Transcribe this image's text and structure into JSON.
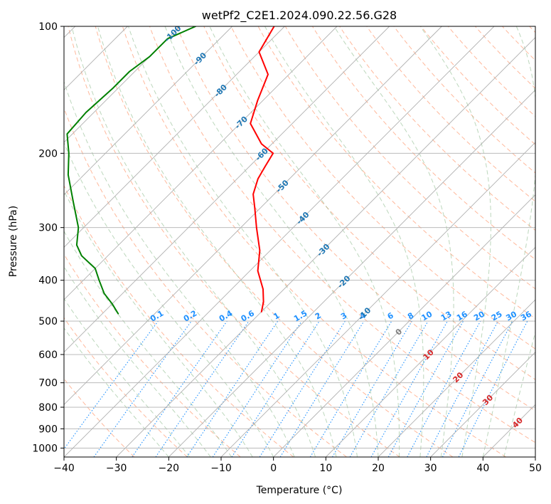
{
  "chart_data": {
    "type": "line",
    "title": "wetPf2_C2E1.2024.090.22.56.G28",
    "xlabel": "Temperature (°C)",
    "ylabel": "Pressure (hPa)",
    "xlim": [
      -40,
      50
    ],
    "ylim": [
      1050,
      100
    ],
    "y_scale": "log",
    "x_ticks": [
      -40,
      -30,
      -20,
      -10,
      0,
      10,
      20,
      30,
      40,
      50
    ],
    "y_ticks": [
      100,
      200,
      300,
      400,
      500,
      600,
      700,
      800,
      900,
      1000
    ],
    "grid": true,
    "colors": {
      "temperature": "#ff0000",
      "dewpoint": "#008000",
      "isotherms": "#b0b0b0",
      "dry_adiabats": "#ffa07a",
      "moist_adiabats": "#8fbc8f",
      "mixing_ratio": "#1e90ff",
      "isotherm_labels": "#1f77b4",
      "low_isotherm_labels": "#d62728",
      "zero_label": "#7f7f7f"
    },
    "series": [
      {
        "key": "temperature",
        "color": "#ff0000",
        "points": [
          {
            "p": 100,
            "t": -82
          },
          {
            "p": 115,
            "t": -80
          },
          {
            "p": 130,
            "t": -74
          },
          {
            "p": 150,
            "t": -71
          },
          {
            "p": 170,
            "t": -68
          },
          {
            "p": 190,
            "t": -62
          },
          {
            "p": 200,
            "t": -58
          },
          {
            "p": 215,
            "t": -57
          },
          {
            "p": 230,
            "t": -56
          },
          {
            "p": 250,
            "t": -54
          },
          {
            "p": 270,
            "t": -51
          },
          {
            "p": 300,
            "t": -47
          },
          {
            "p": 340,
            "t": -42
          },
          {
            "p": 380,
            "t": -38.5
          },
          {
            "p": 420,
            "t": -34
          },
          {
            "p": 450,
            "t": -31.5
          },
          {
            "p": 475,
            "t": -30
          }
        ]
      },
      {
        "key": "dewpoint",
        "color": "#008000",
        "points": [
          {
            "p": 100,
            "t": -97
          },
          {
            "p": 107,
            "t": -100
          },
          {
            "p": 118,
            "t": -100
          },
          {
            "p": 128,
            "t": -101
          },
          {
            "p": 140,
            "t": -101
          },
          {
            "p": 160,
            "t": -101.5
          },
          {
            "p": 180,
            "t": -101
          },
          {
            "p": 200,
            "t": -97
          },
          {
            "p": 225,
            "t": -93
          },
          {
            "p": 260,
            "t": -87
          },
          {
            "p": 300,
            "t": -81
          },
          {
            "p": 330,
            "t": -78
          },
          {
            "p": 350,
            "t": -75
          },
          {
            "p": 375,
            "t": -70
          },
          {
            "p": 400,
            "t": -67
          },
          {
            "p": 430,
            "t": -63.5
          },
          {
            "p": 455,
            "t": -60
          },
          {
            "p": 480,
            "t": -57
          }
        ]
      }
    ],
    "isotherm_labels": [
      -100,
      -90,
      -80,
      -70,
      -60,
      -50,
      -40,
      -30,
      -20,
      -10
    ],
    "low_isotherm_labels": [
      0,
      10,
      20,
      30,
      40
    ],
    "mixing_ratio_labels": [
      "0.1",
      "0.2",
      "0.4",
      "0.6",
      "1",
      "1.5",
      "2",
      "3",
      "4",
      "6",
      "8",
      "10",
      "13",
      "16",
      "20",
      "25",
      "30",
      "36"
    ]
  }
}
